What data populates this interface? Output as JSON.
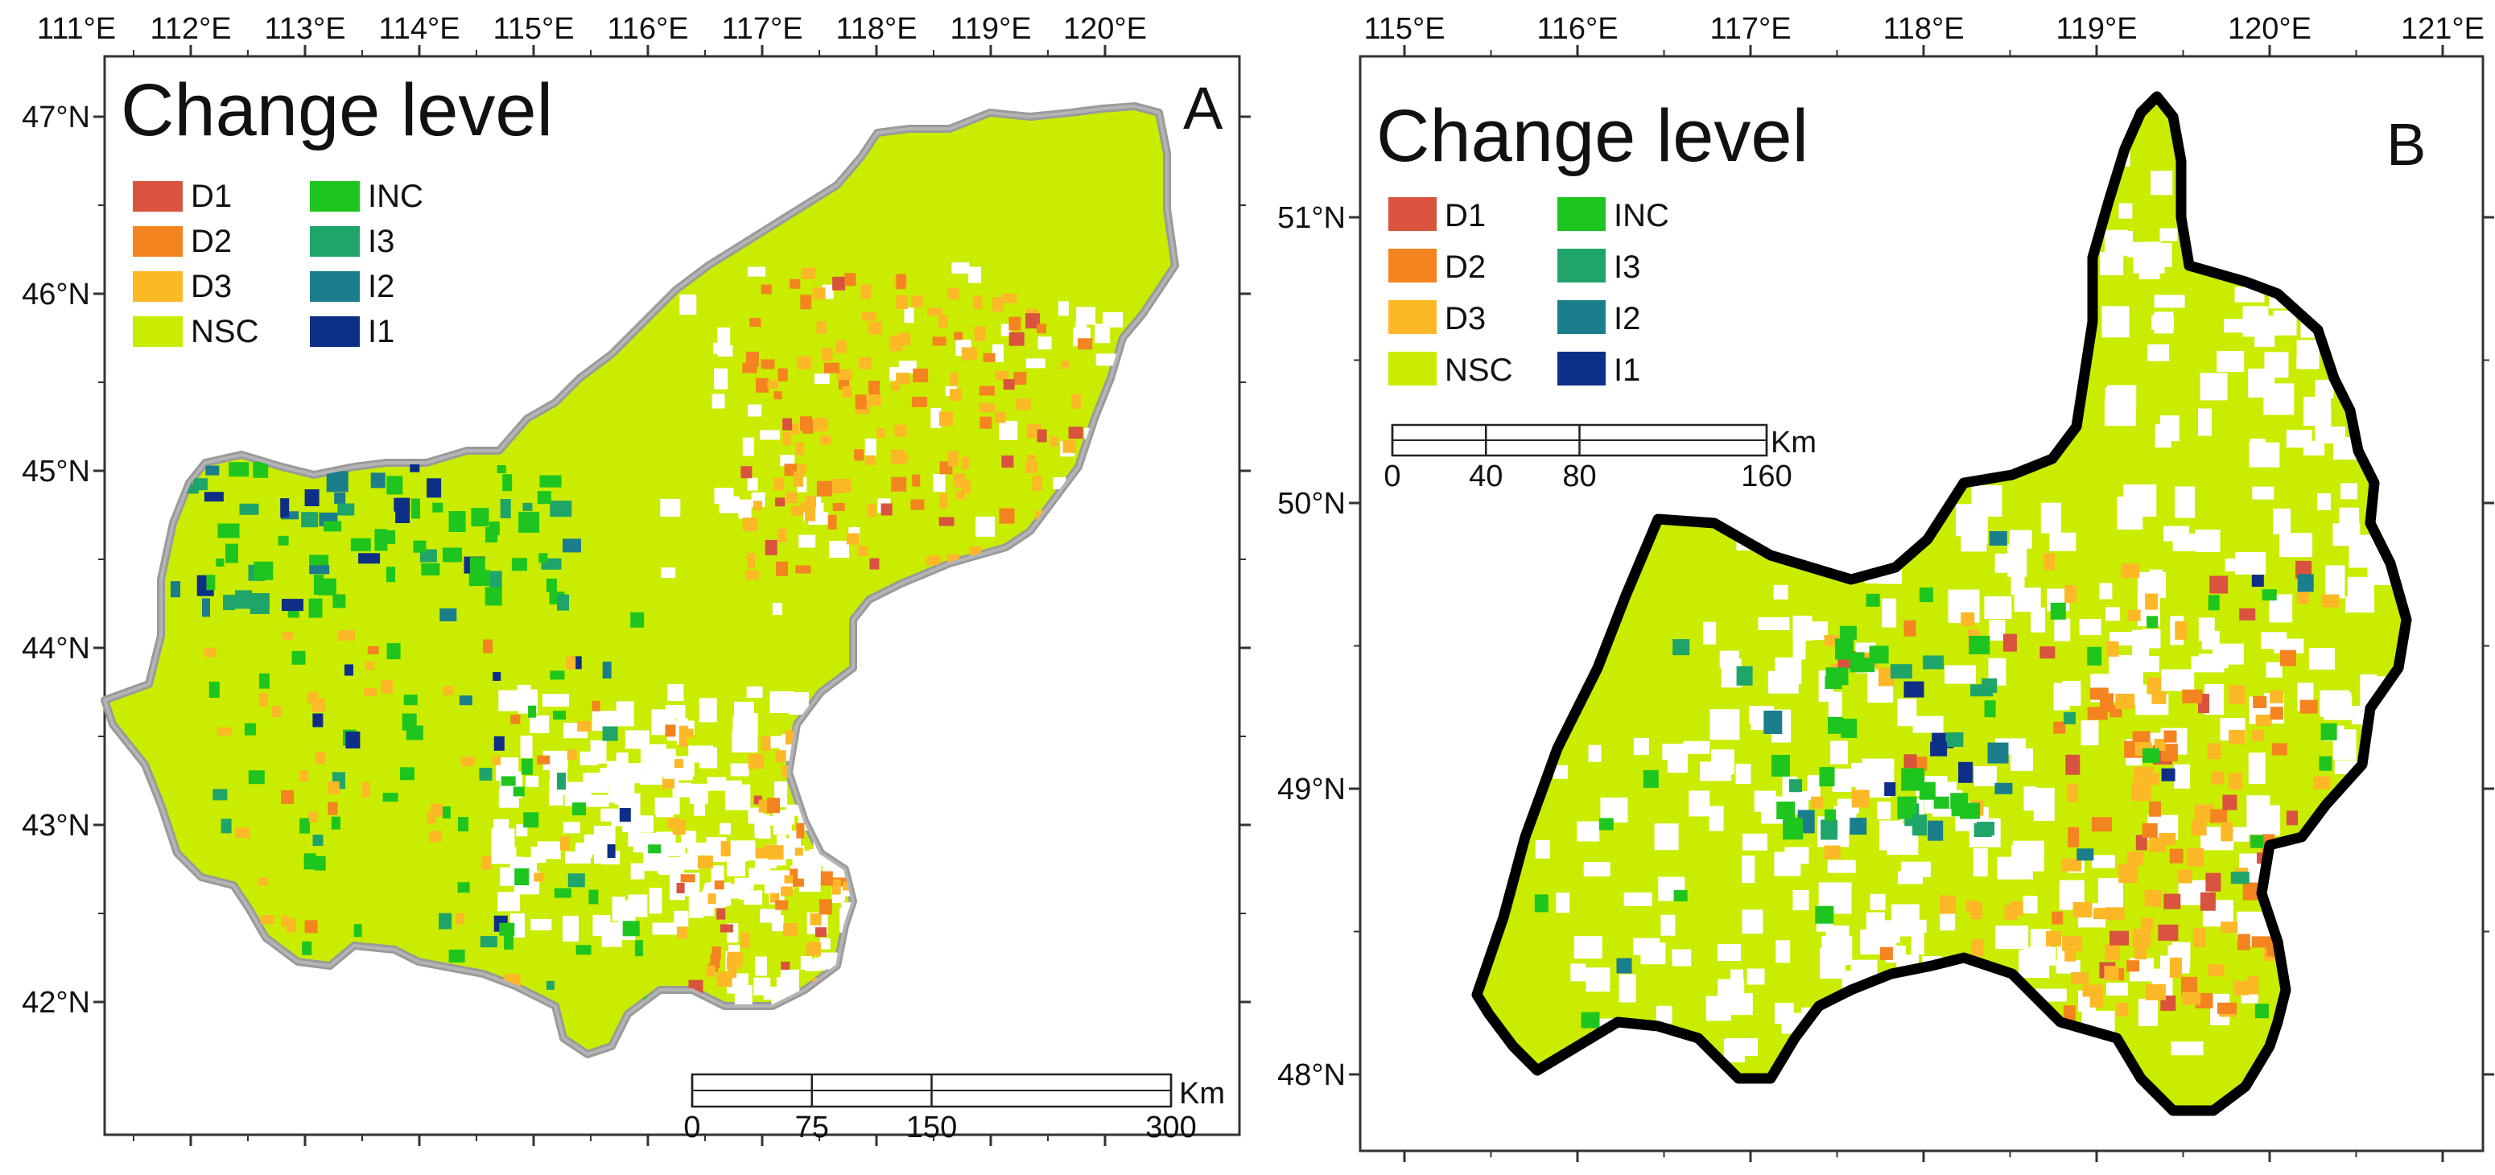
{
  "panels": [
    {
      "id": "A",
      "title": "Change level",
      "panel_letter": "A",
      "lon_ticks": [
        "111°E",
        "112°E",
        "113°E",
        "114°E",
        "115°E",
        "116°E",
        "117°E",
        "118°E",
        "119°E",
        "120°E"
      ],
      "lat_ticks": [
        "47°N",
        "46°N",
        "45°N",
        "44°N",
        "43°N",
        "42°N"
      ],
      "legend": [
        {
          "label": "D1",
          "color": "#d9533e"
        },
        {
          "label": "D2",
          "color": "#f4841f"
        },
        {
          "label": "D3",
          "color": "#fdb827"
        },
        {
          "label": "NSC",
          "color": "#c9ec00"
        },
        {
          "label": "INC",
          "color": "#1ec51e"
        },
        {
          "label": "I3",
          "color": "#1fa46a"
        },
        {
          "label": "I2",
          "color": "#1a7e8c"
        },
        {
          "label": "I1",
          "color": "#0d2f87"
        }
      ],
      "scale_bar": {
        "labels": [
          "0",
          "75",
          "150",
          "300"
        ],
        "unit": "Km"
      }
    },
    {
      "id": "B",
      "title": "Change level",
      "panel_letter": "B",
      "lon_ticks": [
        "115°E",
        "116°E",
        "117°E",
        "118°E",
        "119°E",
        "120°E",
        "121°E"
      ],
      "lat_ticks": [
        "51°N",
        "50°N",
        "49°N",
        "48°N"
      ],
      "legend": [
        {
          "label": "D1",
          "color": "#d9533e"
        },
        {
          "label": "D2",
          "color": "#f4841f"
        },
        {
          "label": "D3",
          "color": "#fdb827"
        },
        {
          "label": "NSC",
          "color": "#c9ec00"
        },
        {
          "label": "INC",
          "color": "#1ec51e"
        },
        {
          "label": "I3",
          "color": "#1fa46a"
        },
        {
          "label": "I2",
          "color": "#1a7e8c"
        },
        {
          "label": "I1",
          "color": "#0d2f87"
        }
      ],
      "scale_bar": {
        "labels": [
          "0",
          "40",
          "80",
          "160"
        ],
        "unit": "Km"
      }
    }
  ]
}
